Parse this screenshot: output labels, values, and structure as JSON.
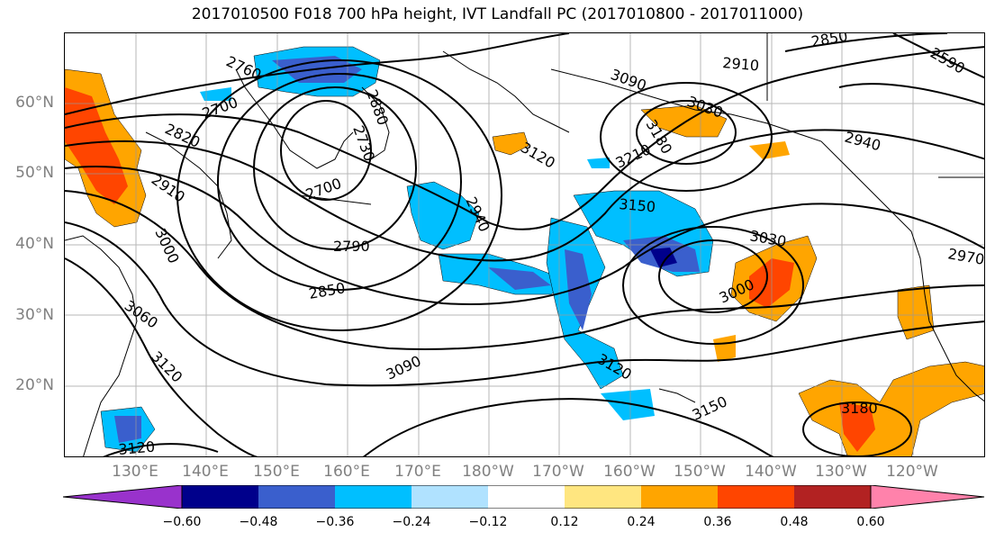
{
  "title": "2017010500 F018 700 hPa height, IVT Landfall PC (2017010800 - 2017011000)",
  "lat_labels": [
    "60°N",
    "50°N",
    "40°N",
    "30°N",
    "20°N"
  ],
  "lon_labels": [
    "130°E",
    "140°E",
    "150°E",
    "160°E",
    "170°E",
    "180°W",
    "170°W",
    "160°W",
    "150°W",
    "140°W",
    "130°W",
    "120°W"
  ],
  "contour_labels": [
    "2760",
    "2700",
    "2820",
    "2910",
    "3000",
    "3060",
    "3120",
    "2700",
    "2790",
    "2850",
    "2730",
    "2880",
    "2940",
    "3090",
    "3120",
    "3090",
    "3210",
    "3150",
    "3120",
    "3150",
    "3030",
    "3000",
    "2970",
    "2910",
    "2850",
    "2590",
    "3030",
    "3180",
    "2940",
    "3120",
    "3180"
  ],
  "colorbar": {
    "ticks": [
      "−0.60",
      "−0.48",
      "−0.36",
      "−0.24",
      "−0.12",
      "0.12",
      "0.24",
      "0.36",
      "0.48",
      "0.60"
    ],
    "colors": [
      "#9932cc",
      "#00008b",
      "#3a5fcd",
      "#00bfff",
      "#b0e2ff",
      "#ffffff",
      "#ffe680",
      "#ffa500",
      "#ff4500",
      "#b22222",
      "#ff82ab"
    ]
  },
  "palette": {
    "pos1": "#ffe680",
    "pos2": "#ffa500",
    "pos3": "#ff4500",
    "neg1": "#b0e2ff",
    "neg2": "#00bfff",
    "neg3": "#3a5fcd",
    "neg4": "#00008b"
  }
}
